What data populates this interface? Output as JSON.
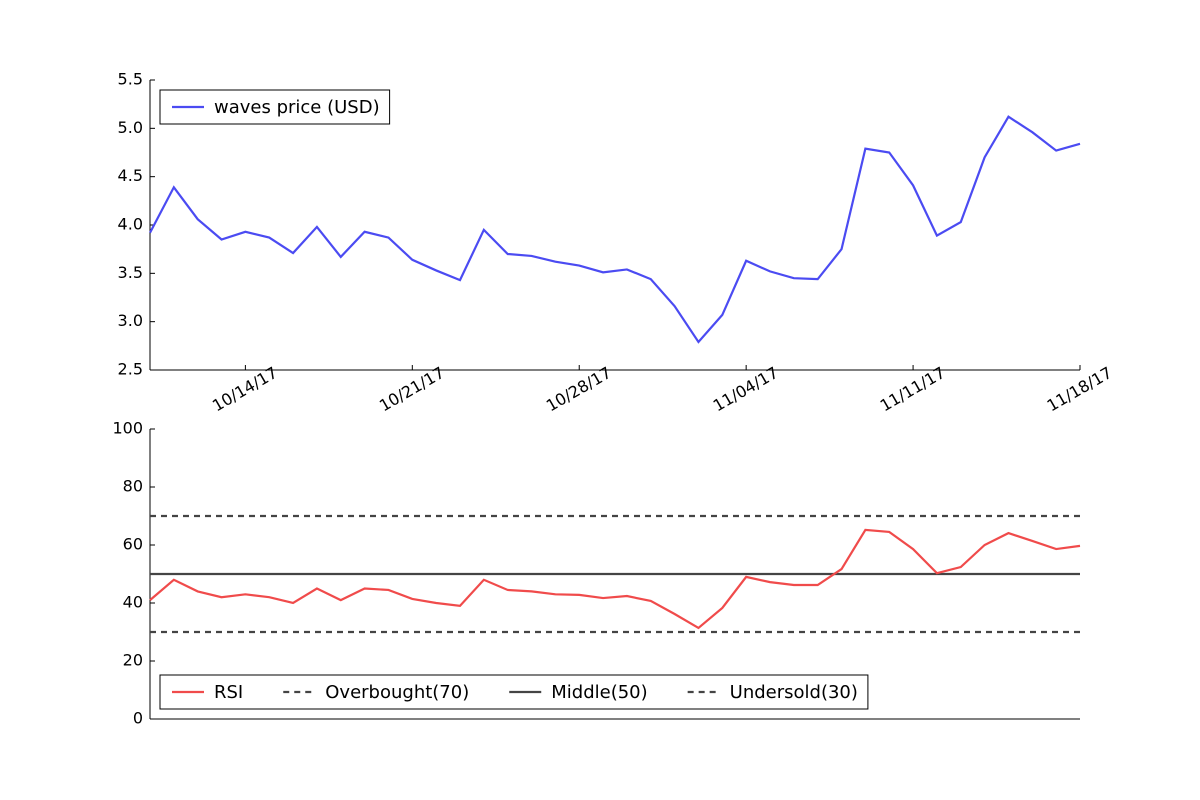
{
  "chart_data": [
    {
      "type": "line",
      "x": [
        "2017-10-10",
        "2017-10-11",
        "2017-10-12",
        "2017-10-13",
        "2017-10-14",
        "2017-10-15",
        "2017-10-16",
        "2017-10-17",
        "2017-10-18",
        "2017-10-19",
        "2017-10-20",
        "2017-10-21",
        "2017-10-22",
        "2017-10-23",
        "2017-10-24",
        "2017-10-25",
        "2017-10-26",
        "2017-10-27",
        "2017-10-28",
        "2017-10-29",
        "2017-10-30",
        "2017-10-31",
        "2017-11-01",
        "2017-11-02",
        "2017-11-03",
        "2017-11-04",
        "2017-11-05",
        "2017-11-06",
        "2017-11-07",
        "2017-11-08",
        "2017-11-09",
        "2017-11-10",
        "2017-11-11",
        "2017-11-12",
        "2017-11-13",
        "2017-11-14",
        "2017-11-15",
        "2017-11-16",
        "2017-11-17",
        "2017-11-18"
      ],
      "series": [
        {
          "name": "waves price (USD)",
          "color": "#4b4bf2",
          "values": [
            3.92,
            4.39,
            4.06,
            3.85,
            3.93,
            3.87,
            3.71,
            3.98,
            3.67,
            3.93,
            3.87,
            3.64,
            3.53,
            3.43,
            3.95,
            3.7,
            3.68,
            3.62,
            3.58,
            3.51,
            3.54,
            3.44,
            3.16,
            2.79,
            3.07,
            3.63,
            3.52,
            3.45,
            3.44,
            3.75,
            4.79,
            4.75,
            4.41,
            3.89,
            4.03,
            4.7,
            5.12,
            4.96,
            4.77,
            4.84
          ]
        }
      ],
      "xlim": [
        "2017-10-10",
        "2017-11-18"
      ],
      "xticks": [
        {
          "value": "2017-10-14",
          "label": "10/14/17"
        },
        {
          "value": "2017-10-21",
          "label": "10/21/17"
        },
        {
          "value": "2017-10-28",
          "label": "10/28/17"
        },
        {
          "value": "2017-11-04",
          "label": "11/04/17"
        },
        {
          "value": "2017-11-11",
          "label": "11/11/17"
        },
        {
          "value": "2017-11-18",
          "label": "11/18/17"
        }
      ],
      "ylim": [
        2.5,
        5.5
      ],
      "yticks": [
        2.5,
        {
          "value": 3,
          "label": "3.0"
        },
        3.5,
        {
          "value": 4,
          "label": "4.0"
        },
        4.5,
        {
          "value": 5,
          "label": "5.0"
        },
        5.5
      ],
      "legend": "upper left"
    },
    {
      "type": "line",
      "x": [
        "2017-10-10",
        "2017-10-11",
        "2017-10-12",
        "2017-10-13",
        "2017-10-14",
        "2017-10-15",
        "2017-10-16",
        "2017-10-17",
        "2017-10-18",
        "2017-10-19",
        "2017-10-20",
        "2017-10-21",
        "2017-10-22",
        "2017-10-23",
        "2017-10-24",
        "2017-10-25",
        "2017-10-26",
        "2017-10-27",
        "2017-10-28",
        "2017-10-29",
        "2017-10-30",
        "2017-10-31",
        "2017-11-01",
        "2017-11-02",
        "2017-11-03",
        "2017-11-04",
        "2017-11-05",
        "2017-11-06",
        "2017-11-07",
        "2017-11-08",
        "2017-11-09",
        "2017-11-10",
        "2017-11-11",
        "2017-11-12",
        "2017-11-13",
        "2017-11-14",
        "2017-11-15",
        "2017-11-16",
        "2017-11-17",
        "2017-11-18"
      ],
      "series": [
        {
          "name": "RSI",
          "color": "#f04b4b",
          "values": [
            41,
            48,
            44,
            42,
            43,
            42,
            40,
            45,
            41,
            45,
            44.5,
            41.4,
            40,
            39,
            48,
            44.5,
            44,
            43,
            42.8,
            41.7,
            42.4,
            40.7,
            36.2,
            31.4,
            38.3,
            49,
            47.2,
            46.2,
            46.2,
            51.7,
            65.2,
            64.5,
            58.6,
            50.3,
            52.4,
            60,
            64.1,
            61.4,
            58.6,
            59.7
          ]
        }
      ],
      "hlines": [
        {
          "name": "Overbought(70)",
          "value": 70,
          "color": "#444444",
          "style": "dashed"
        },
        {
          "name": "Middle(50)",
          "value": 50,
          "color": "#444444",
          "style": "solid"
        },
        {
          "name": "Undersold(30)",
          "value": 30,
          "color": "#444444",
          "style": "dashed"
        }
      ],
      "xlim": [
        "2017-10-10",
        "2017-11-18"
      ],
      "ylim": [
        0,
        100
      ],
      "yticks": [
        0,
        20,
        40,
        60,
        80,
        100
      ],
      "legend": "lower left"
    }
  ]
}
